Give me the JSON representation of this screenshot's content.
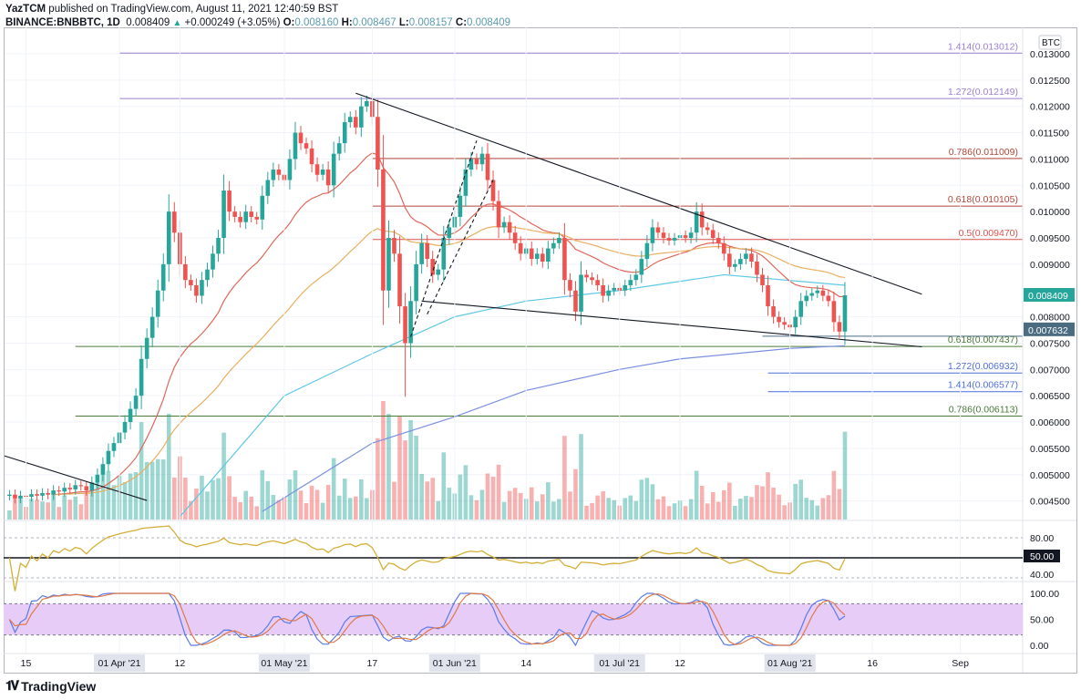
{
  "header": {
    "publisher": "YazTCM",
    "published_text": "published on TradingView.com, August 11, 2021 12:40:59 BST",
    "symbol": "BINANCE:BNBBTC, 1D",
    "last": "0.008409",
    "change": "+0.000249 (+3.05%)",
    "o_label": "O:",
    "o": "0.008160",
    "h_label": "H:",
    "h": "0.008467",
    "l_label": "L:",
    "l": "0.008157",
    "c_label": "C:",
    "c": "0.008409"
  },
  "chart_data": {
    "type": "candlestick",
    "title": "BINANCE:BNBBTC, 1D",
    "start_date": "2021-03-12",
    "closes": [
      0.00462,
      0.00455,
      0.0046,
      0.00458,
      0.00463,
      0.0046,
      0.00465,
      0.00462,
      0.0047,
      0.00468,
      0.00475,
      0.00472,
      0.0048,
      0.00478,
      0.0047,
      0.00485,
      0.005,
      0.0052,
      0.00545,
      0.0056,
      0.0058,
      0.006,
      0.00625,
      0.0065,
      0.0072,
      0.0076,
      0.008,
      0.0085,
      0.009,
      0.01,
      0.0096,
      0.009,
      0.0087,
      0.0086,
      0.0084,
      0.0087,
      0.0089,
      0.0092,
      0.0095,
      0.0104,
      0.01,
      0.0099,
      0.0098,
      0.01,
      0.0099,
      0.00985,
      0.0103,
      0.0106,
      0.0108,
      0.0107,
      0.0106,
      0.011,
      0.0115,
      0.0113,
      0.0112,
      0.0109,
      0.0107,
      0.0108,
      0.0105,
      0.0111,
      0.0113,
      0.0117,
      0.0118,
      0.0116,
      0.012,
      0.0121,
      0.0118,
      0.0108,
      0.0085,
      0.0095,
      0.0092,
      0.0082,
      0.0075,
      0.0083,
      0.009,
      0.0094,
      0.0091,
      0.0088,
      0.0089,
      0.0095,
      0.0097,
      0.0099,
      0.0103,
      0.0108,
      0.011,
      0.0109,
      0.0111,
      0.0106,
      0.0102,
      0.0097,
      0.0098,
      0.0096,
      0.0094,
      0.0092,
      0.0093,
      0.0091,
      0.0092,
      0.00905,
      0.0093,
      0.0094,
      0.0095,
      0.0087,
      0.0085,
      0.0081,
      0.0088,
      0.00875,
      0.0087,
      0.0086,
      0.0084,
      0.0085,
      0.00855,
      0.0085,
      0.0086,
      0.0087,
      0.0088,
      0.0091,
      0.0094,
      0.0097,
      0.0096,
      0.0095,
      0.00945,
      0.0095,
      0.00955,
      0.0095,
      0.0096,
      0.01,
      0.0097,
      0.00965,
      0.0095,
      0.0094,
      0.0092,
      0.00895,
      0.009,
      0.0091,
      0.0092,
      0.00905,
      0.0088,
      0.0086,
      0.0082,
      0.008,
      0.0079,
      0.00785,
      0.0078,
      0.008,
      0.0083,
      0.0084,
      0.00845,
      0.0085,
      0.0084,
      0.0083,
      0.0079,
      0.00772,
      0.008409
    ],
    "moving_averages": [
      {
        "name": "MA100",
        "color": "#5ec8e5",
        "points": [
          [
            "2021-04-12",
            0.0042
          ],
          [
            "2021-05-01",
            0.0065
          ],
          [
            "2021-05-17",
            0.0073
          ],
          [
            "2021-06-01",
            0.008
          ],
          [
            "2021-06-14",
            0.0083
          ],
          [
            "2021-07-01",
            0.0085
          ],
          [
            "2021-07-20",
            0.0088
          ],
          [
            "2021-08-11",
            0.0086
          ]
        ]
      },
      {
        "name": "MA200",
        "color": "#7b8fe0",
        "points": [
          [
            "2021-04-27",
            0.0043
          ],
          [
            "2021-05-17",
            0.0056
          ],
          [
            "2021-06-01",
            0.0061
          ],
          [
            "2021-06-14",
            0.0066
          ],
          [
            "2021-07-01",
            0.007
          ],
          [
            "2021-07-12",
            0.0072
          ],
          [
            "2021-08-01",
            0.0074
          ],
          [
            "2021-08-11",
            0.00745
          ]
        ]
      }
    ],
    "ema_periods": [
      {
        "period": 20,
        "color": "#e0675a"
      },
      {
        "period": 50,
        "color": "#e8b062"
      }
    ],
    "trendlines": [
      {
        "name": "descending-resistance",
        "color": "#131722",
        "dash": false,
        "from": [
          "2021-05-14",
          0.01225
        ],
        "to": [
          "2021-08-25",
          0.00843
        ]
      },
      {
        "name": "lower-support",
        "color": "#131722",
        "dash": false,
        "from": [
          "2021-05-26",
          0.0083
        ],
        "to": [
          "2021-08-25",
          0.00743
        ]
      },
      {
        "name": "early-downtrend",
        "color": "#131722",
        "dash": false,
        "from": [
          "2021-03-11",
          0.00536
        ],
        "to": [
          "2021-04-06",
          0.00451
        ]
      },
      {
        "name": "channel-lower",
        "color": "#131722",
        "dash": true,
        "from": [
          "2021-05-24",
          0.00762
        ],
        "to": [
          "2021-06-05",
          0.01135
        ]
      },
      {
        "name": "channel-upper",
        "color": "#131722",
        "dash": true,
        "from": [
          "2021-05-27",
          0.00805
        ],
        "to": [
          "2021-06-08",
          0.0106
        ]
      }
    ],
    "fib_levels": [
      {
        "label": "1.414(0.013012)",
        "value": 0.013012,
        "color": "#9c7fd0",
        "from": "2021-04-01"
      },
      {
        "label": "1.272(0.012149)",
        "value": 0.012149,
        "color": "#9c7fd0",
        "from": "2021-04-01"
      },
      {
        "label": "0.786(0.011009)",
        "value": 0.011009,
        "color": "#b5473a",
        "from": "2021-05-17"
      },
      {
        "label": "0.618(0.010105)",
        "value": 0.010105,
        "color": "#b5473a",
        "from": "2021-05-17"
      },
      {
        "label": "0.5(0.009470)",
        "value": 0.00947,
        "color": "#d9534f",
        "from": "2021-05-17"
      },
      {
        "label": "0.618(0.007437)",
        "value": 0.007437,
        "color": "#4a7a3a",
        "from": "2021-03-24"
      },
      {
        "label": "1.272(0.006932)",
        "value": 0.006932,
        "color": "#4f6fd8",
        "from": "2021-07-28"
      },
      {
        "label": "1.414(0.006577)",
        "value": 0.006577,
        "color": "#4f6fd8",
        "from": "2021-07-28"
      },
      {
        "label": "0.786(0.006113)",
        "value": 0.006113,
        "color": "#4a7a3a",
        "from": "2021-03-24"
      }
    ],
    "support_line": {
      "value": 0.007632,
      "label": "0.007632",
      "color": "#4a6b80",
      "from": "2021-07-27"
    },
    "last_price_tag": {
      "label": "0.008409",
      "value": 0.008409,
      "color": "#26a69a"
    },
    "price_axis": {
      "currency": "BTC",
      "ticks": [
        "0.013000",
        "0.012500",
        "0.012000",
        "0.011500",
        "0.011000",
        "0.010500",
        "0.010000",
        "0.009500",
        "0.009000",
        "0.008000",
        "0.007500",
        "0.007000",
        "0.006500",
        "0.006000",
        "0.005500",
        "0.005000",
        "0.004500"
      ]
    },
    "rsi_axis": {
      "ticks": [
        "80.00",
        "40.00"
      ],
      "mid_label": "50.00"
    },
    "stoch_axis": {
      "ticks": [
        "100.00",
        "50.00",
        "0.00"
      ]
    },
    "time_axis": {
      "ticks": [
        {
          "label": "15",
          "date": "2021-03-15",
          "month": false
        },
        {
          "label": "01 Apr '21",
          "date": "2021-04-01",
          "month": true
        },
        {
          "label": "12",
          "date": "2021-04-12",
          "month": false
        },
        {
          "label": "01 May '21",
          "date": "2021-05-01",
          "month": true
        },
        {
          "label": "17",
          "date": "2021-05-17",
          "month": false
        },
        {
          "label": "01 Jun '21",
          "date": "2021-06-01",
          "month": true
        },
        {
          "label": "14",
          "date": "2021-06-14",
          "month": false
        },
        {
          "label": "01 Jul '21",
          "date": "2021-07-01",
          "month": true
        },
        {
          "label": "12",
          "date": "2021-07-12",
          "month": false
        },
        {
          "label": "01 Aug '21",
          "date": "2021-08-01",
          "month": true
        },
        {
          "label": "16",
          "date": "2021-08-16",
          "month": false
        },
        {
          "label": "Sep",
          "date": "2021-09-01",
          "month": false
        }
      ]
    },
    "colors": {
      "up": "#26a69a",
      "down": "#ef5350",
      "rsi": "#d4af37",
      "stoch_k": "#5b7be8",
      "stoch_d": "#e07a4a",
      "stoch_band": "#e6ccf7"
    }
  },
  "footer": {
    "brand": "TradingView"
  }
}
